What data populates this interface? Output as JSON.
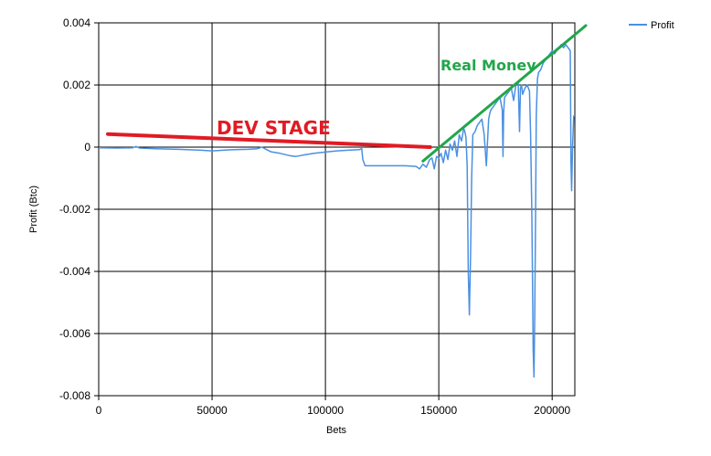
{
  "chart_data": {
    "type": "line",
    "xlabel": "Bets",
    "ylabel": "Profit (Btc)",
    "xlim": [
      0,
      210000
    ],
    "ylim": [
      -0.008,
      0.004
    ],
    "x_ticks": [
      0,
      50000,
      100000,
      150000,
      200000
    ],
    "y_ticks": [
      -0.008,
      -0.006,
      -0.004,
      -0.002,
      0,
      0.002,
      0.004
    ],
    "x_tick_labels": [
      "0",
      "50000",
      "100000",
      "150000",
      "200000"
    ],
    "y_tick_labels": [
      "-0.008",
      "-0.006",
      "-0.004",
      "-0.002",
      "0",
      "0.002",
      "0.004"
    ],
    "grid": true,
    "legend": {
      "position": "top-right",
      "entries": [
        "Profit"
      ]
    },
    "series": [
      {
        "name": "Profit",
        "color": "#4a90e2",
        "x": [
          0,
          8000,
          15000,
          16500,
          18000,
          25000,
          35000,
          45000,
          50000,
          55000,
          60000,
          66000,
          70000,
          72000,
          74000,
          76000,
          80000,
          84000,
          87000,
          90000,
          95000,
          100000,
          105000,
          110000,
          115000,
          116000,
          116500,
          117500,
          118000,
          125000,
          135000,
          140000,
          141500,
          143000,
          144500,
          146000,
          147000,
          148000,
          149000,
          150000,
          151000,
          152000,
          153000,
          154000,
          155000,
          156000,
          157000,
          158000,
          159000,
          160000,
          161000,
          161500,
          162000,
          162500,
          163000,
          163500,
          164000,
          164500,
          165000,
          166000,
          167000,
          168000,
          169000,
          170000,
          171000,
          171500,
          172000,
          172500,
          173000,
          174000,
          175000,
          176000,
          177000,
          178000,
          178300,
          178600,
          179000,
          180000,
          181000,
          182000,
          183000,
          184000,
          185000,
          185600,
          186000,
          186500,
          187000,
          188000,
          189000,
          190000,
          190500,
          191000,
          191300,
          191600,
          192000,
          192300,
          192700,
          193000,
          193500,
          194000,
          195000,
          196000,
          197000,
          198000,
          199000,
          200000,
          201000,
          202000,
          203000,
          204000,
          205000,
          206000,
          207000,
          208000,
          208300,
          208600,
          209000,
          209500,
          210000
        ],
        "values": [
          -2e-05,
          -3e-05,
          -2e-05,
          2e-05,
          -3e-05,
          -5e-05,
          -7e-05,
          -0.0001,
          -0.00012,
          -0.0001,
          -8e-05,
          -7e-05,
          -5e-05,
          0.0,
          -8e-05,
          -0.00015,
          -0.0002,
          -0.00027,
          -0.0003,
          -0.00026,
          -0.0002,
          -0.00016,
          -0.00012,
          -0.0001,
          -8e-05,
          -5e-05,
          -0.0004,
          -0.0006,
          -0.0006,
          -0.0006,
          -0.0006,
          -0.00062,
          -0.0007,
          -0.00055,
          -0.00065,
          -0.0004,
          -0.00035,
          -0.0007,
          -0.0003,
          -0.00035,
          -0.0002,
          -0.0005,
          -0.0001,
          -0.0004,
          0.0001,
          -0.0001,
          0.0002,
          -0.0003,
          0.0004,
          0.0002,
          0.0006,
          0.0005,
          0.0003,
          -0.0006,
          -0.004,
          -0.0054,
          -0.0035,
          -0.001,
          0.0004,
          0.0005,
          0.0007,
          0.0008,
          0.0009,
          0.0004,
          -0.0006,
          0.0002,
          0.0009,
          0.0011,
          0.0012,
          0.0013,
          0.0014,
          0.0015,
          0.0016,
          0.0012,
          -0.0003,
          0.0011,
          0.0016,
          0.0017,
          0.0018,
          0.0019,
          0.0015,
          0.002,
          0.0021,
          0.0005,
          0.0019,
          0.002,
          0.0017,
          0.0019,
          0.002,
          0.0018,
          0.0004,
          -0.002,
          -0.004,
          -0.0065,
          -0.0074,
          -0.0055,
          -0.002,
          0.001,
          0.0022,
          0.0024,
          0.0025,
          0.0027,
          0.0028,
          0.0029,
          0.003,
          0.0031,
          0.003,
          0.0031,
          0.0032,
          0.0033,
          0.0032,
          0.0033,
          0.0032,
          0.0031,
          -0.0005,
          -0.0014,
          0.0,
          0.001,
          0.001
        ]
      }
    ],
    "annotations": [
      {
        "text": "DEV STAGE",
        "color": "#e01b24",
        "line_x": [
          0,
          145000
        ],
        "line_y": [
          0.00042,
          0.0
        ]
      },
      {
        "text": "Real Money",
        "color": "#22a64a",
        "line_x": [
          143000,
          209500
        ],
        "line_y": [
          -0.00045,
          0.0039
        ]
      }
    ]
  }
}
